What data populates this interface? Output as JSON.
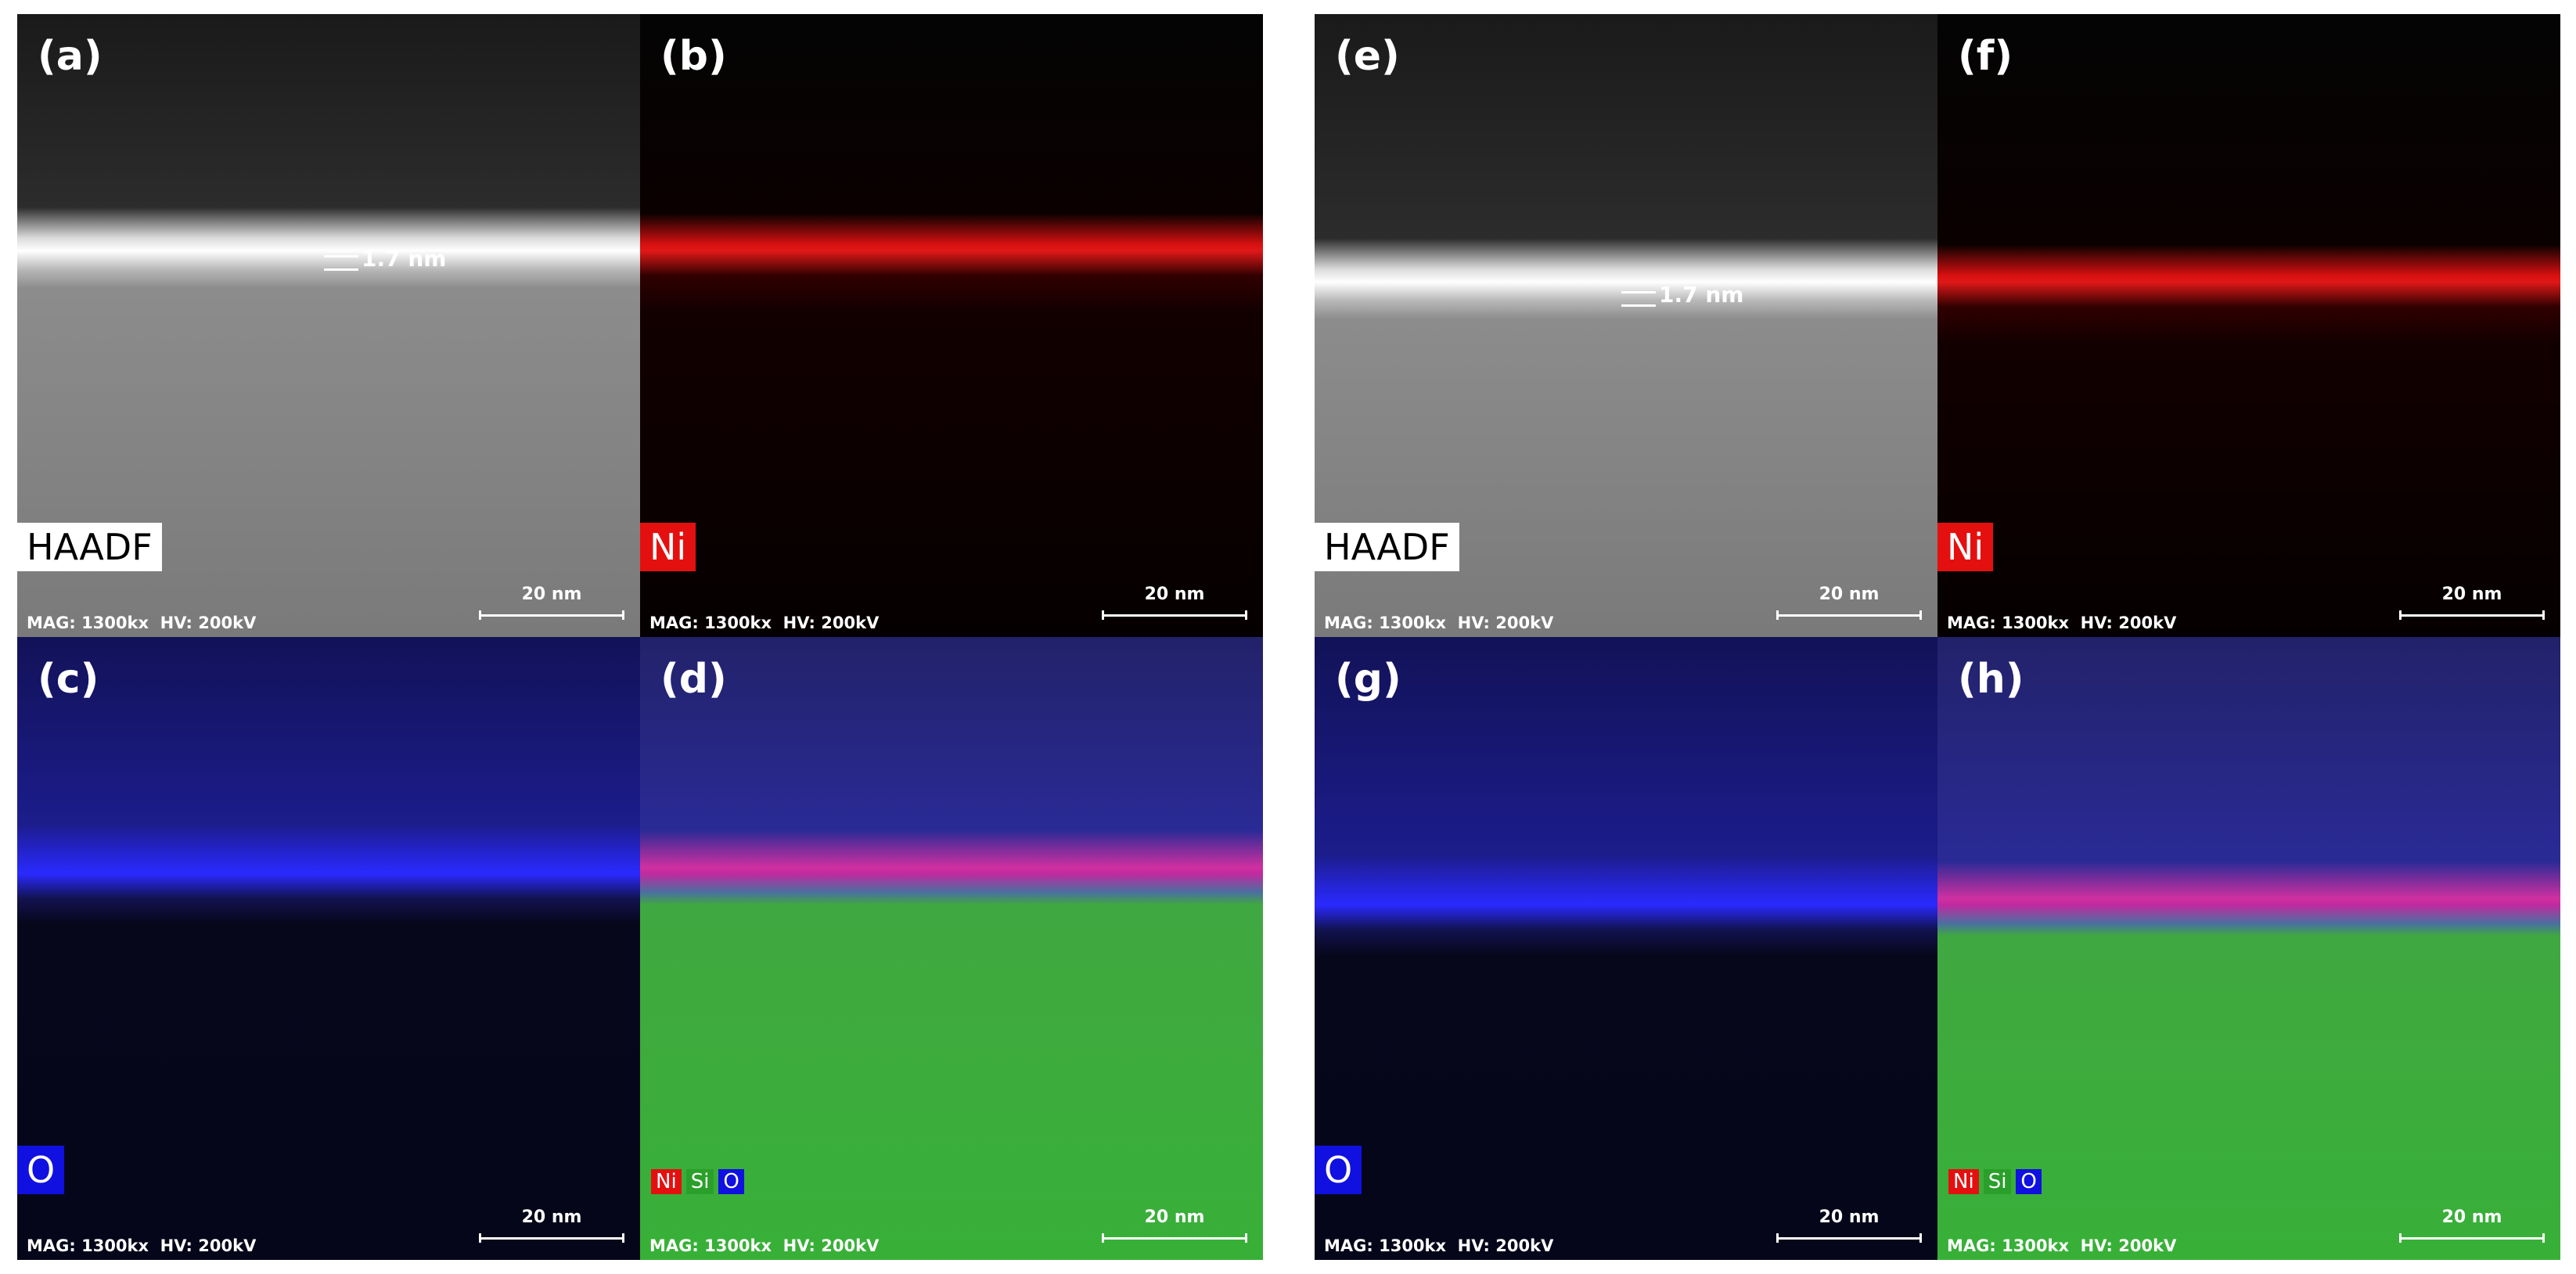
{
  "panels": [
    {
      "label": "(a)",
      "tags": [
        "HAADF"
      ],
      "annotation": "1.7 nm",
      "scale_bar": "20 nm",
      "info": "MAG: 1300kx  HV: 200kV"
    },
    {
      "label": "(b)",
      "tags": [
        "Ni"
      ],
      "scale_bar": "20 nm",
      "info": "MAG: 1300kx  HV: 200kV"
    },
    {
      "label": "(c)",
      "tags": [
        "O"
      ],
      "scale_bar": "20 nm",
      "info": "MAG: 1300kx  HV: 200kV"
    },
    {
      "label": "(d)",
      "tags": [
        "Ni",
        "Si",
        "O"
      ],
      "scale_bar": "20 nm",
      "info": "MAG: 1300kx  HV: 200kV"
    },
    {
      "label": "(e)",
      "tags": [
        "HAADF"
      ],
      "annotation": "1.7 nm",
      "scale_bar": "20 nm",
      "info": "MAG: 1300kx  HV: 200kV"
    },
    {
      "label": "(f)",
      "tags": [
        "Ni"
      ],
      "scale_bar": "20 nm",
      "info": "MAG: 1300kx  HV: 200kV"
    },
    {
      "label": "(g)",
      "tags": [
        "O"
      ],
      "scale_bar": "20 nm",
      "info": "MAG: 1300kx  HV: 200kV"
    },
    {
      "label": "(h)",
      "tags": [
        "Ni",
        "Si",
        "O"
      ],
      "scale_bar": "20 nm",
      "info": "MAG: 1300kx  HV: 200kV"
    }
  ]
}
